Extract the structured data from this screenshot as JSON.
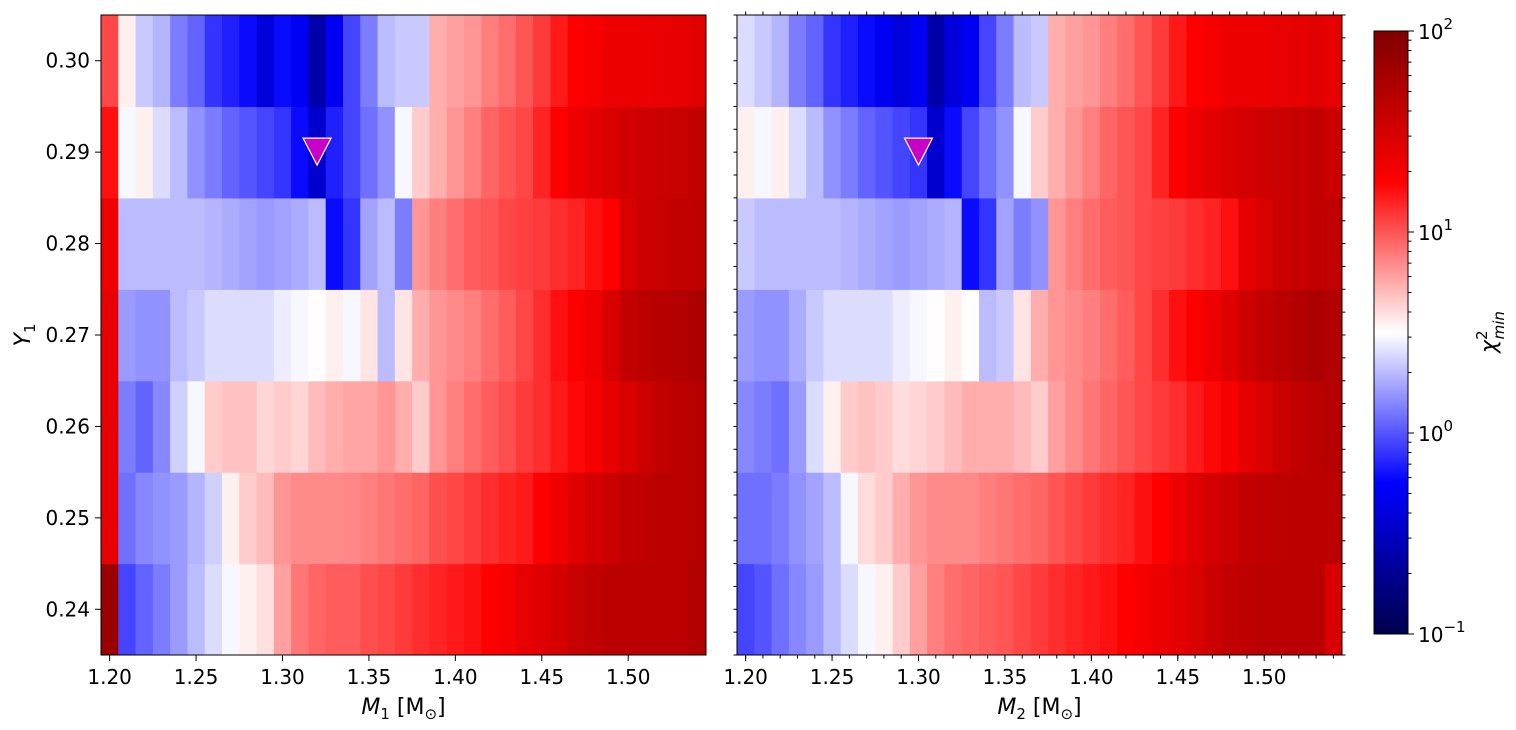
{
  "chart_data": {
    "type": "heatmap",
    "colormap": "seismic",
    "color_scale": "log",
    "color_range": [
      0.1,
      100
    ],
    "colorbar": {
      "label_main": "χ",
      "label_sup": "2",
      "label_sub": "min",
      "ticks": [
        {
          "value": 0.1,
          "base": "10",
          "exp": "−1"
        },
        {
          "value": 1,
          "base": "10",
          "exp": "0"
        },
        {
          "value": 10,
          "base": "10",
          "exp": "1"
        },
        {
          "value": 100,
          "base": "10",
          "exp": "2"
        }
      ]
    },
    "y": [
      0.24,
      0.245,
      0.25,
      0.255,
      0.26,
      0.265,
      0.27,
      0.275,
      0.28,
      0.285,
      0.29,
      0.295,
      0.3
    ],
    "panels": [
      {
        "xlabel_main": "M",
        "xlabel_sub": "1",
        "xlabel_unit": " [M",
        "xlabel_unit_sub": "⊙",
        "xlabel_close": "]",
        "ylabel_main": "Y",
        "ylabel_sub": "1",
        "xlim": [
          1.195,
          1.545
        ],
        "ylim": [
          0.235,
          0.305
        ],
        "x_ticks": [
          "1.20",
          "1.25",
          "1.30",
          "1.35",
          "1.40",
          "1.45",
          "1.50"
        ],
        "y_ticks": [
          "0.24",
          "0.25",
          "0.26",
          "0.27",
          "0.28",
          "0.29",
          "0.30"
        ],
        "x_cells": [
          1.2,
          1.21,
          1.22,
          1.23,
          1.24,
          1.25,
          1.26,
          1.27,
          1.28,
          1.29,
          1.3,
          1.31,
          1.32,
          1.33,
          1.34,
          1.35,
          1.36,
          1.37,
          1.38,
          1.39,
          1.4,
          1.41,
          1.42,
          1.43,
          1.44,
          1.45,
          1.46,
          1.47,
          1.48,
          1.49,
          1.5,
          1.51,
          1.52,
          1.53,
          1.54
        ],
        "y_rows": [
          0.24,
          0.25,
          0.26,
          0.27,
          0.28,
          0.29,
          0.3
        ],
        "values": [
          [
            70,
            0.9,
            1.1,
            1.3,
            1.6,
            2.0,
            2.5,
            3.0,
            3.5,
            3.9,
            6.0,
            8.0,
            9.0,
            9.5,
            9.5,
            10.5,
            11,
            12,
            13,
            14,
            15,
            16,
            18,
            20,
            25,
            28,
            32,
            38,
            42,
            45,
            45,
            45,
            45,
            45,
            50
          ],
          [
            25,
            1.2,
            1.4,
            1.5,
            1.6,
            1.9,
            2.3,
            3.5,
            4.5,
            5.0,
            6.5,
            7.0,
            7.0,
            7.0,
            7.2,
            7.5,
            8.0,
            8.5,
            9.0,
            10.5,
            11,
            12,
            13,
            14,
            15,
            18,
            22,
            27,
            32,
            36,
            40,
            42,
            45,
            45,
            48
          ],
          [
            25,
            1.3,
            1.1,
            1.4,
            2.3,
            3.0,
            4.5,
            4.8,
            4.8,
            4.2,
            4.5,
            4.2,
            5.0,
            5.5,
            5.8,
            5.8,
            6.5,
            5.5,
            4.5,
            6.5,
            7.5,
            8.5,
            9.5,
            10.5,
            12,
            13,
            15,
            17,
            20,
            25,
            30,
            35,
            40,
            45,
            48
          ],
          [
            25,
            1.6,
            1.5,
            1.5,
            2.0,
            2.2,
            2.5,
            2.5,
            2.5,
            2.5,
            2.8,
            3.0,
            3.2,
            3.5,
            3.0,
            3.8,
            2.0,
            3.8,
            5.5,
            6.5,
            7.0,
            7.5,
            8.5,
            9.5,
            11,
            13,
            16,
            19,
            22,
            30,
            40,
            45,
            48,
            50,
            55
          ],
          [
            22,
            2.0,
            2.0,
            2.0,
            2.0,
            2.0,
            1.9,
            1.8,
            1.7,
            1.6,
            1.7,
            1.8,
            2.0,
            0.6,
            0.8,
            1.7,
            2.0,
            1.3,
            6.5,
            7.5,
            8.5,
            9.5,
            10,
            11,
            11.5,
            12,
            13,
            14,
            16,
            18,
            30,
            35,
            38,
            40,
            42
          ],
          [
            16,
            3.0,
            3.5,
            2.5,
            2.0,
            1.5,
            1.3,
            1.1,
            1.0,
            0.9,
            0.8,
            0.6,
            0.35,
            0.7,
            0.9,
            1.2,
            1.5,
            3.0,
            4.5,
            5.5,
            6.5,
            7.5,
            9.0,
            10,
            11,
            14,
            18,
            22,
            26,
            30,
            32,
            34,
            36,
            38,
            40
          ],
          [
            11,
            3.5,
            2.2,
            1.9,
            1.3,
            1.1,
            0.8,
            0.7,
            0.6,
            0.4,
            0.6,
            0.5,
            0.25,
            0.5,
            0.9,
            1.3,
            2.0,
            2.2,
            2.2,
            5.5,
            6.0,
            6.5,
            7.5,
            8.5,
            10,
            12,
            15,
            18,
            20,
            22,
            22,
            23,
            24,
            25,
            26
          ]
        ],
        "marker": {
          "x": 1.32,
          "y": 0.29,
          "color": "#c800c8",
          "shape": "triangle-down"
        }
      },
      {
        "xlabel_main": "M",
        "xlabel_sub": "2",
        "xlabel_unit": " [M",
        "xlabel_unit_sub": "⊙",
        "xlabel_close": "]",
        "ylabel_main": "",
        "ylabel_sub": "",
        "xlim": [
          1.195,
          1.545
        ],
        "ylim": [
          0.235,
          0.305
        ],
        "x_ticks": [
          "1.20",
          "1.25",
          "1.30",
          "1.35",
          "1.40",
          "1.45",
          "1.50"
        ],
        "y_ticks": [],
        "x_cells": [
          1.2,
          1.21,
          1.22,
          1.23,
          1.24,
          1.25,
          1.26,
          1.27,
          1.28,
          1.29,
          1.3,
          1.31,
          1.32,
          1.33,
          1.34,
          1.35,
          1.36,
          1.37,
          1.38,
          1.39,
          1.4,
          1.41,
          1.42,
          1.43,
          1.44,
          1.45,
          1.46,
          1.47,
          1.48,
          1.49,
          1.5,
          1.51,
          1.52,
          1.53,
          1.54
        ],
        "y_rows": [
          0.24,
          0.25,
          0.26,
          0.27,
          0.28,
          0.29,
          0.3
        ],
        "values": [
          [
            0.9,
            1.0,
            1.2,
            1.4,
            1.6,
            2.0,
            2.5,
            3.0,
            3.5,
            4.5,
            6.0,
            7.5,
            8.5,
            9.0,
            9.5,
            10,
            11,
            12,
            13,
            14,
            15,
            16,
            18,
            20,
            23,
            26,
            30,
            35,
            40,
            43,
            45,
            45,
            45,
            45,
            30
          ],
          [
            1.2,
            1.2,
            1.3,
            1.5,
            1.7,
            2.0,
            3.0,
            4.0,
            4.5,
            5.5,
            6.5,
            7.0,
            7.0,
            7.0,
            7.5,
            8.0,
            8.5,
            9.0,
            10,
            11,
            12,
            13,
            14,
            16,
            18,
            22,
            27,
            32,
            36,
            40,
            42,
            44,
            45,
            45,
            45
          ],
          [
            1.4,
            1.3,
            1.2,
            1.6,
            2.5,
            3.5,
            4.5,
            4.8,
            4.5,
            4.0,
            4.2,
            4.5,
            5.0,
            5.5,
            5.5,
            5.5,
            5.0,
            4.5,
            6.0,
            7.0,
            8.0,
            9.0,
            10,
            11,
            12,
            13,
            15,
            17,
            20,
            25,
            30,
            35,
            40,
            45,
            48
          ],
          [
            1.6,
            1.5,
            1.5,
            1.8,
            2.2,
            2.5,
            2.5,
            2.5,
            2.5,
            2.8,
            3.0,
            3.2,
            3.5,
            3.2,
            2.0,
            2.2,
            3.8,
            5.5,
            6.5,
            7.0,
            7.5,
            8.5,
            9.5,
            11,
            13,
            16,
            19,
            22,
            28,
            35,
            40,
            45,
            50,
            55,
            50
          ],
          [
            2.2,
            2.0,
            2.0,
            2.0,
            2.0,
            2.0,
            1.9,
            1.8,
            1.7,
            1.6,
            1.7,
            1.8,
            1.9,
            0.6,
            0.8,
            1.7,
            1.3,
            1.5,
            6.5,
            7.5,
            8.5,
            9.5,
            10,
            11,
            11.5,
            12,
            13,
            14,
            16,
            25,
            30,
            35,
            38,
            40,
            42
          ],
          [
            3.5,
            3.0,
            3.5,
            2.5,
            2.0,
            1.5,
            1.3,
            1.1,
            1.0,
            0.9,
            0.8,
            0.35,
            0.6,
            0.9,
            1.2,
            1.5,
            3.0,
            4.5,
            5.5,
            6.5,
            7.5,
            9.0,
            10,
            11,
            14,
            18,
            22,
            26,
            30,
            32,
            34,
            36,
            38,
            40,
            35
          ],
          [
            2.5,
            2.2,
            1.9,
            1.3,
            1.1,
            0.8,
            0.7,
            0.6,
            0.5,
            0.4,
            0.5,
            0.25,
            0.4,
            0.5,
            0.9,
            1.3,
            2.0,
            2.2,
            5.5,
            6.0,
            6.5,
            7.5,
            8.5,
            10,
            12,
            15,
            18,
            20,
            22,
            22,
            23,
            24,
            25,
            26,
            25
          ]
        ],
        "marker": {
          "x": 1.3,
          "y": 0.29,
          "color": "#c800c8",
          "shape": "triangle-down"
        }
      }
    ]
  }
}
